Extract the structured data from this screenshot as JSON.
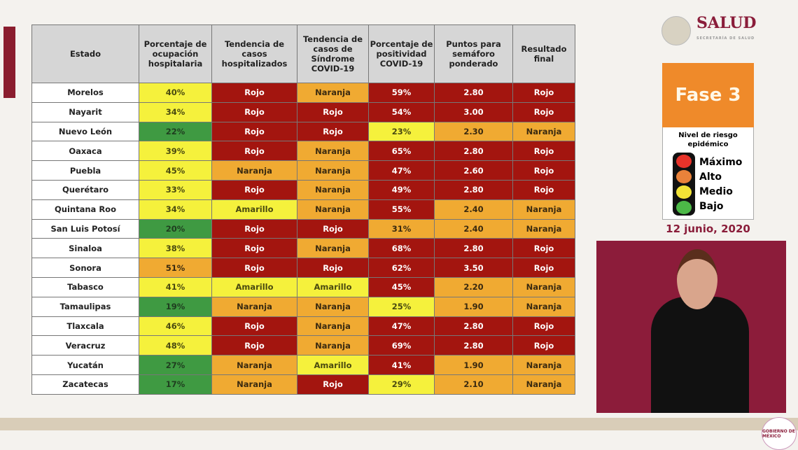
{
  "colors": {
    "R": "#a3150f",
    "O": "#f0aa32",
    "Y": "#f5f13c",
    "G": "#3f9a42",
    "brand": "#8a1d3a",
    "fase": "#ef8a2a"
  },
  "header": {
    "brand": "SALUD",
    "subtitle": "SECRETARÍA DE SALUD"
  },
  "table": {
    "columns": [
      "Estado",
      "Porcentaje de ocupación hospitalaria",
      "Tendencia de casos hospitalizados",
      "Tendencia de casos de Síndrome COVID-19",
      "Porcentaje de positividad COVID-19",
      "Puntos para semáforo ponderado",
      "Resultado final"
    ],
    "rows": [
      {
        "estado": "Morelos",
        "cells": [
          [
            "40%",
            "Y"
          ],
          [
            "Rojo",
            "R"
          ],
          [
            "Naranja",
            "O"
          ],
          [
            "59%",
            "R"
          ],
          [
            "2.80",
            "R"
          ],
          [
            "Rojo",
            "R"
          ]
        ]
      },
      {
        "estado": "Nayarit",
        "cells": [
          [
            "34%",
            "Y"
          ],
          [
            "Rojo",
            "R"
          ],
          [
            "Rojo",
            "R"
          ],
          [
            "54%",
            "R"
          ],
          [
            "3.00",
            "R"
          ],
          [
            "Rojo",
            "R"
          ]
        ]
      },
      {
        "estado": "Nuevo León",
        "cells": [
          [
            "22%",
            "G"
          ],
          [
            "Rojo",
            "R"
          ],
          [
            "Rojo",
            "R"
          ],
          [
            "23%",
            "Y"
          ],
          [
            "2.30",
            "O"
          ],
          [
            "Naranja",
            "O"
          ]
        ]
      },
      {
        "estado": "Oaxaca",
        "cells": [
          [
            "39%",
            "Y"
          ],
          [
            "Rojo",
            "R"
          ],
          [
            "Naranja",
            "O"
          ],
          [
            "65%",
            "R"
          ],
          [
            "2.80",
            "R"
          ],
          [
            "Rojo",
            "R"
          ]
        ]
      },
      {
        "estado": "Puebla",
        "cells": [
          [
            "45%",
            "Y"
          ],
          [
            "Naranja",
            "O"
          ],
          [
            "Naranja",
            "O"
          ],
          [
            "47%",
            "R"
          ],
          [
            "2.60",
            "R"
          ],
          [
            "Rojo",
            "R"
          ]
        ]
      },
      {
        "estado": "Querétaro",
        "cells": [
          [
            "33%",
            "Y"
          ],
          [
            "Rojo",
            "R"
          ],
          [
            "Naranja",
            "O"
          ],
          [
            "49%",
            "R"
          ],
          [
            "2.80",
            "R"
          ],
          [
            "Rojo",
            "R"
          ]
        ]
      },
      {
        "estado": "Quintana Roo",
        "cells": [
          [
            "34%",
            "Y"
          ],
          [
            "Amarillo",
            "Y"
          ],
          [
            "Naranja",
            "O"
          ],
          [
            "55%",
            "R"
          ],
          [
            "2.40",
            "O"
          ],
          [
            "Naranja",
            "O"
          ]
        ]
      },
      {
        "estado": "San Luis Potosí",
        "cells": [
          [
            "20%",
            "G"
          ],
          [
            "Rojo",
            "R"
          ],
          [
            "Rojo",
            "R"
          ],
          [
            "31%",
            "O"
          ],
          [
            "2.40",
            "O"
          ],
          [
            "Naranja",
            "O"
          ]
        ]
      },
      {
        "estado": "Sinaloa",
        "cells": [
          [
            "38%",
            "Y"
          ],
          [
            "Rojo",
            "R"
          ],
          [
            "Naranja",
            "O"
          ],
          [
            "68%",
            "R"
          ],
          [
            "2.80",
            "R"
          ],
          [
            "Rojo",
            "R"
          ]
        ]
      },
      {
        "estado": "Sonora",
        "cells": [
          [
            "51%",
            "O"
          ],
          [
            "Rojo",
            "R"
          ],
          [
            "Rojo",
            "R"
          ],
          [
            "62%",
            "R"
          ],
          [
            "3.50",
            "R"
          ],
          [
            "Rojo",
            "R"
          ]
        ]
      },
      {
        "estado": "Tabasco",
        "cells": [
          [
            "41%",
            "Y"
          ],
          [
            "Amarillo",
            "Y"
          ],
          [
            "Amarillo",
            "Y"
          ],
          [
            "45%",
            "R"
          ],
          [
            "2.20",
            "O"
          ],
          [
            "Naranja",
            "O"
          ]
        ]
      },
      {
        "estado": "Tamaulipas",
        "cells": [
          [
            "19%",
            "G"
          ],
          [
            "Naranja",
            "O"
          ],
          [
            "Naranja",
            "O"
          ],
          [
            "25%",
            "Y"
          ],
          [
            "1.90",
            "O"
          ],
          [
            "Naranja",
            "O"
          ]
        ]
      },
      {
        "estado": "Tlaxcala",
        "cells": [
          [
            "46%",
            "Y"
          ],
          [
            "Rojo",
            "R"
          ],
          [
            "Naranja",
            "O"
          ],
          [
            "47%",
            "R"
          ],
          [
            "2.80",
            "R"
          ],
          [
            "Rojo",
            "R"
          ]
        ]
      },
      {
        "estado": "Veracruz",
        "cells": [
          [
            "48%",
            "Y"
          ],
          [
            "Rojo",
            "R"
          ],
          [
            "Naranja",
            "O"
          ],
          [
            "69%",
            "R"
          ],
          [
            "2.80",
            "R"
          ],
          [
            "Rojo",
            "R"
          ]
        ]
      },
      {
        "estado": "Yucatán",
        "cells": [
          [
            "27%",
            "G"
          ],
          [
            "Naranja",
            "O"
          ],
          [
            "Amarillo",
            "Y"
          ],
          [
            "41%",
            "R"
          ],
          [
            "1.90",
            "O"
          ],
          [
            "Naranja",
            "O"
          ]
        ]
      },
      {
        "estado": "Zacatecas",
        "cells": [
          [
            "17%",
            "G"
          ],
          [
            "Naranja",
            "O"
          ],
          [
            "Rojo",
            "R"
          ],
          [
            "29%",
            "Y"
          ],
          [
            "2.10",
            "O"
          ],
          [
            "Naranja",
            "O"
          ]
        ]
      }
    ]
  },
  "semaforo": {
    "fase": "Fase 3",
    "nivel": "Nivel de riesgo epidémico",
    "levels": [
      "Máximo",
      "Alto",
      "Medio",
      "Bajo"
    ],
    "light_colors": [
      "#e8332a",
      "#e9823a",
      "#f2e336",
      "#4cb847"
    ],
    "date": "12 junio, 2020"
  },
  "footer": {
    "logo": "GOBIERNO DE MÉXICO"
  }
}
